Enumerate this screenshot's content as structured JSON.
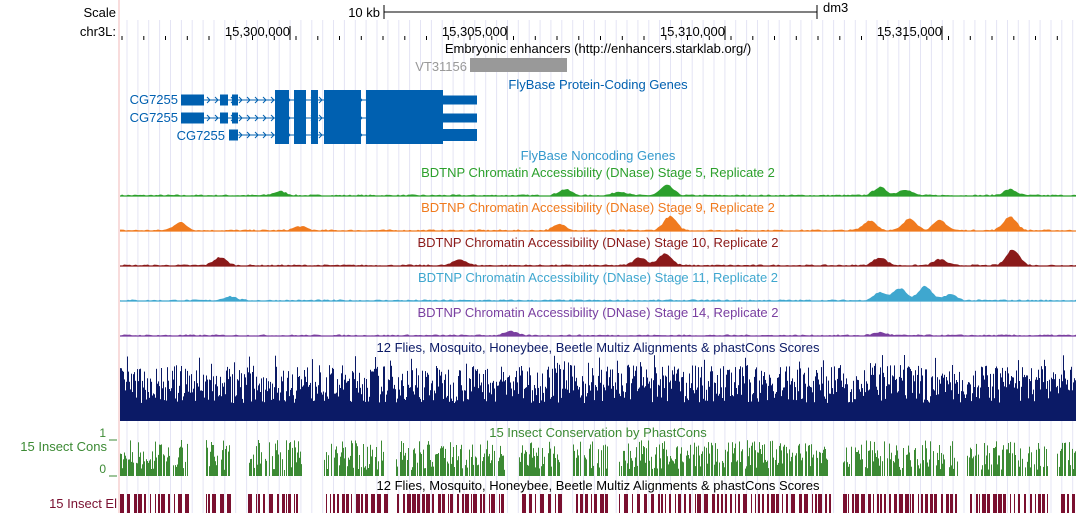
{
  "ruler": {
    "scale_label": "Scale",
    "chrom_label": "chr3L:",
    "scale_bar_label": "10 kb",
    "assembly": "dm3",
    "positions": [
      "15,300,000",
      "15,305,000",
      "15,310,000",
      "15,315,000"
    ]
  },
  "tracks": {
    "enhancers": {
      "title": "Embryonic enhancers (http://enhancers.starklab.org/)",
      "item_label": "VT31156",
      "color": "#999999"
    },
    "flybase_coding": {
      "title": "FlyBase Protein-Coding Genes",
      "color": "#0060b0",
      "genes": [
        {
          "name": "CG7255"
        },
        {
          "name": "CG7255"
        },
        {
          "name": "CG7255"
        }
      ]
    },
    "flybase_noncoding": {
      "title": "FlyBase Noncoding Genes",
      "color": "#3399cc"
    },
    "dnase": [
      {
        "title": "BDTNP Chromatin Accessibility (DNase) Stage 5, Replicate 2",
        "color": "#2ca02c"
      },
      {
        "title": "BDTNP Chromatin Accessibility (DNase) Stage 9, Replicate 2",
        "color": "#f07a1e"
      },
      {
        "title": "BDTNP Chromatin Accessibility (DNase) Stage 10, Replicate 2",
        "color": "#8b1a1a"
      },
      {
        "title": "BDTNP Chromatin Accessibility (DNase) Stage 11, Replicate 2",
        "color": "#3fa7cf"
      },
      {
        "title": "BDTNP Chromatin Accessibility (DNase) Stage 14, Replicate 2",
        "color": "#7a3fa0"
      }
    ],
    "multiz": {
      "title": "12 Flies, Mosquito, Honeybee, Beetle Multiz Alignments & phastCons Scores",
      "color": "#0b1a66"
    },
    "phastcons": {
      "title": "15 Insect Conservation by PhastCons",
      "side_label": "15 Insect Cons",
      "axis_max": "1",
      "axis_min": "0",
      "color": "#3c8a34"
    },
    "elements": {
      "title": "12 Flies, Mosquito, Honeybee, Beetle Multiz Alignments & phastCons Scores",
      "side_label": "15 Insect El",
      "color": "#7a1030"
    }
  }
}
